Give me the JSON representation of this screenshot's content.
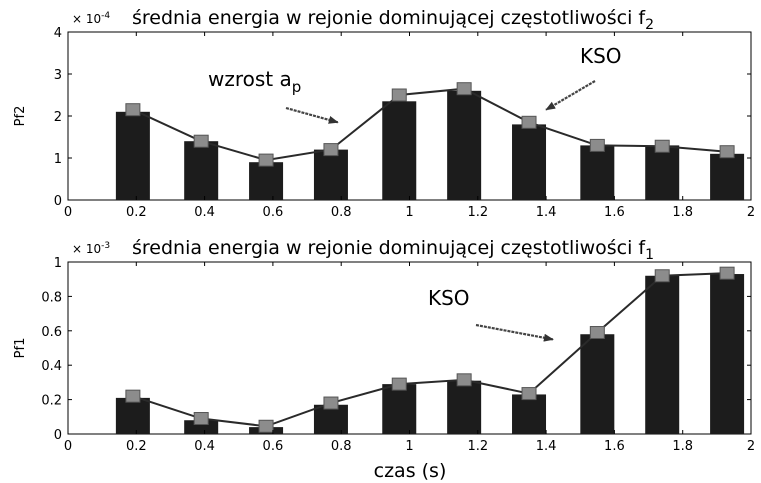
{
  "chart_data": [
    {
      "type": "bar",
      "title": "średnia energia w rejonie dominującej   częstotliwości f",
      "title_sub": "2",
      "exponent_label": "× 10",
      "exponent_power": "-4",
      "ylabel": "Pf2",
      "xlabel": "",
      "xlim": [
        0,
        2
      ],
      "ylim": [
        0,
        4
      ],
      "xticks": [
        "0",
        "0.2",
        "0.4",
        "0.6",
        "0.8",
        "1",
        "1.2",
        "1.4",
        "1.6",
        "1.8",
        "2"
      ],
      "yticks": [
        "0",
        "1",
        "2",
        "3",
        "4"
      ],
      "x": [
        0.19,
        0.39,
        0.58,
        0.77,
        0.97,
        1.16,
        1.35,
        1.55,
        1.74,
        1.93
      ],
      "values": [
        2.1,
        1.4,
        0.9,
        1.2,
        2.35,
        2.6,
        1.8,
        1.3,
        1.3,
        1.1
      ],
      "line_values": [
        2.15,
        1.4,
        0.95,
        1.2,
        2.5,
        2.65,
        1.85,
        1.3,
        1.28,
        1.15
      ],
      "annotations": [
        {
          "text": "wzrost a",
          "sub": "p",
          "point_x": 0.79,
          "point_y": 1.85
        },
        {
          "text": "KSO",
          "point_x": 1.4,
          "point_y": 2.15
        }
      ],
      "grid": false
    },
    {
      "type": "bar",
      "title": "średnia energia w rejonie dominującej   częstotliwości f",
      "title_sub": "1",
      "exponent_label": "× 10",
      "exponent_power": "-3",
      "ylabel": "Pf1",
      "xlabel": "czas (s)",
      "xlim": [
        0,
        2
      ],
      "ylim": [
        0,
        1
      ],
      "xticks": [
        "0",
        "0.2",
        "0.4",
        "0.6",
        "0.8",
        "1",
        "1.2",
        "1.4",
        "1.6",
        "1.8",
        "2"
      ],
      "yticks": [
        "0",
        "0.2",
        "0.4",
        "0.6",
        "0.8",
        "1"
      ],
      "x": [
        0.19,
        0.39,
        0.58,
        0.77,
        0.97,
        1.16,
        1.35,
        1.55,
        1.74,
        1.93
      ],
      "values": [
        0.21,
        0.08,
        0.04,
        0.17,
        0.29,
        0.31,
        0.23,
        0.58,
        0.92,
        0.93
      ],
      "line_values": [
        0.22,
        0.09,
        0.045,
        0.18,
        0.29,
        0.315,
        0.235,
        0.59,
        0.92,
        0.935
      ],
      "annotations": [
        {
          "text": "KSO",
          "point_x": 1.42,
          "point_y": 0.55
        }
      ],
      "grid": false
    }
  ]
}
